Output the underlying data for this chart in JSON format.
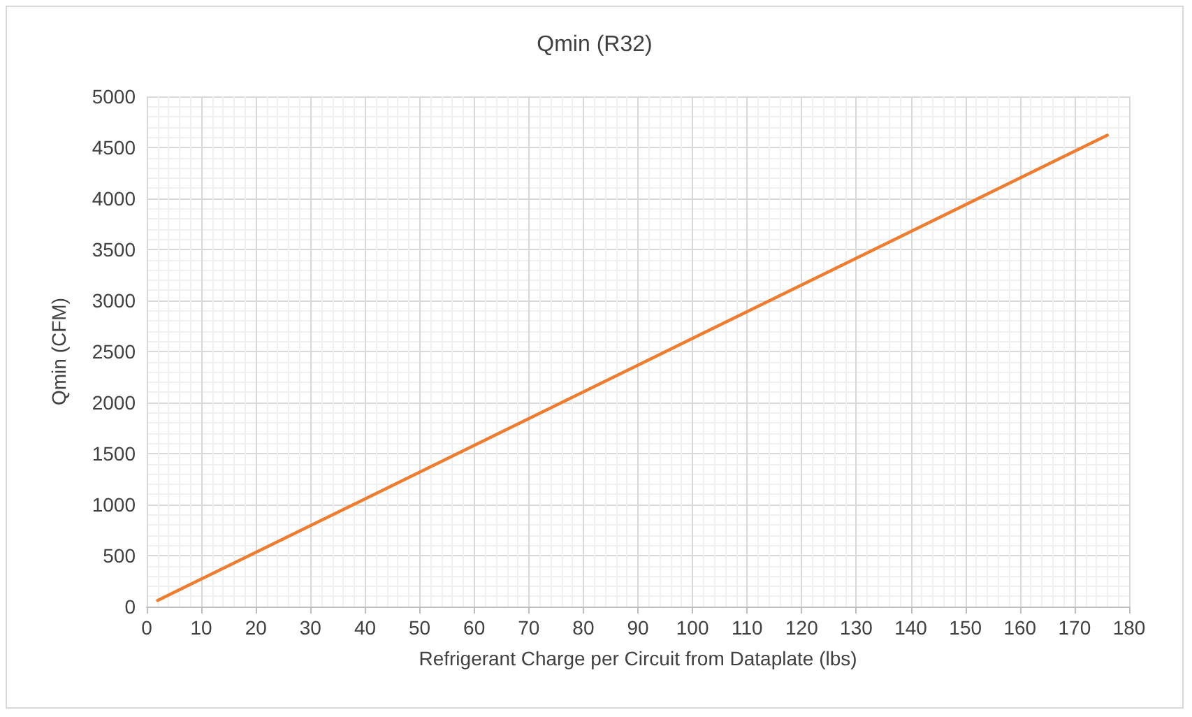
{
  "chart_data": {
    "type": "line",
    "title": "Qmin (R32)",
    "xlabel": "Refrigerant Charge per Circuit from Dataplate (lbs)",
    "ylabel": "Qmin (CFM)",
    "x": [
      2,
      176
    ],
    "series": [
      {
        "color": "#ed7d31",
        "values": [
          60,
          4620
        ]
      }
    ],
    "xlim": [
      0,
      180
    ],
    "xticks": [
      0,
      10,
      20,
      30,
      40,
      50,
      60,
      70,
      80,
      90,
      100,
      110,
      120,
      130,
      140,
      150,
      160,
      170,
      180
    ],
    "ylim": [
      0,
      5000
    ],
    "yticks": [
      0,
      500,
      1000,
      1500,
      2000,
      2500,
      3000,
      3500,
      4000,
      4500,
      5000
    ],
    "grid": true,
    "marker": "none",
    "line_style": "solid"
  }
}
